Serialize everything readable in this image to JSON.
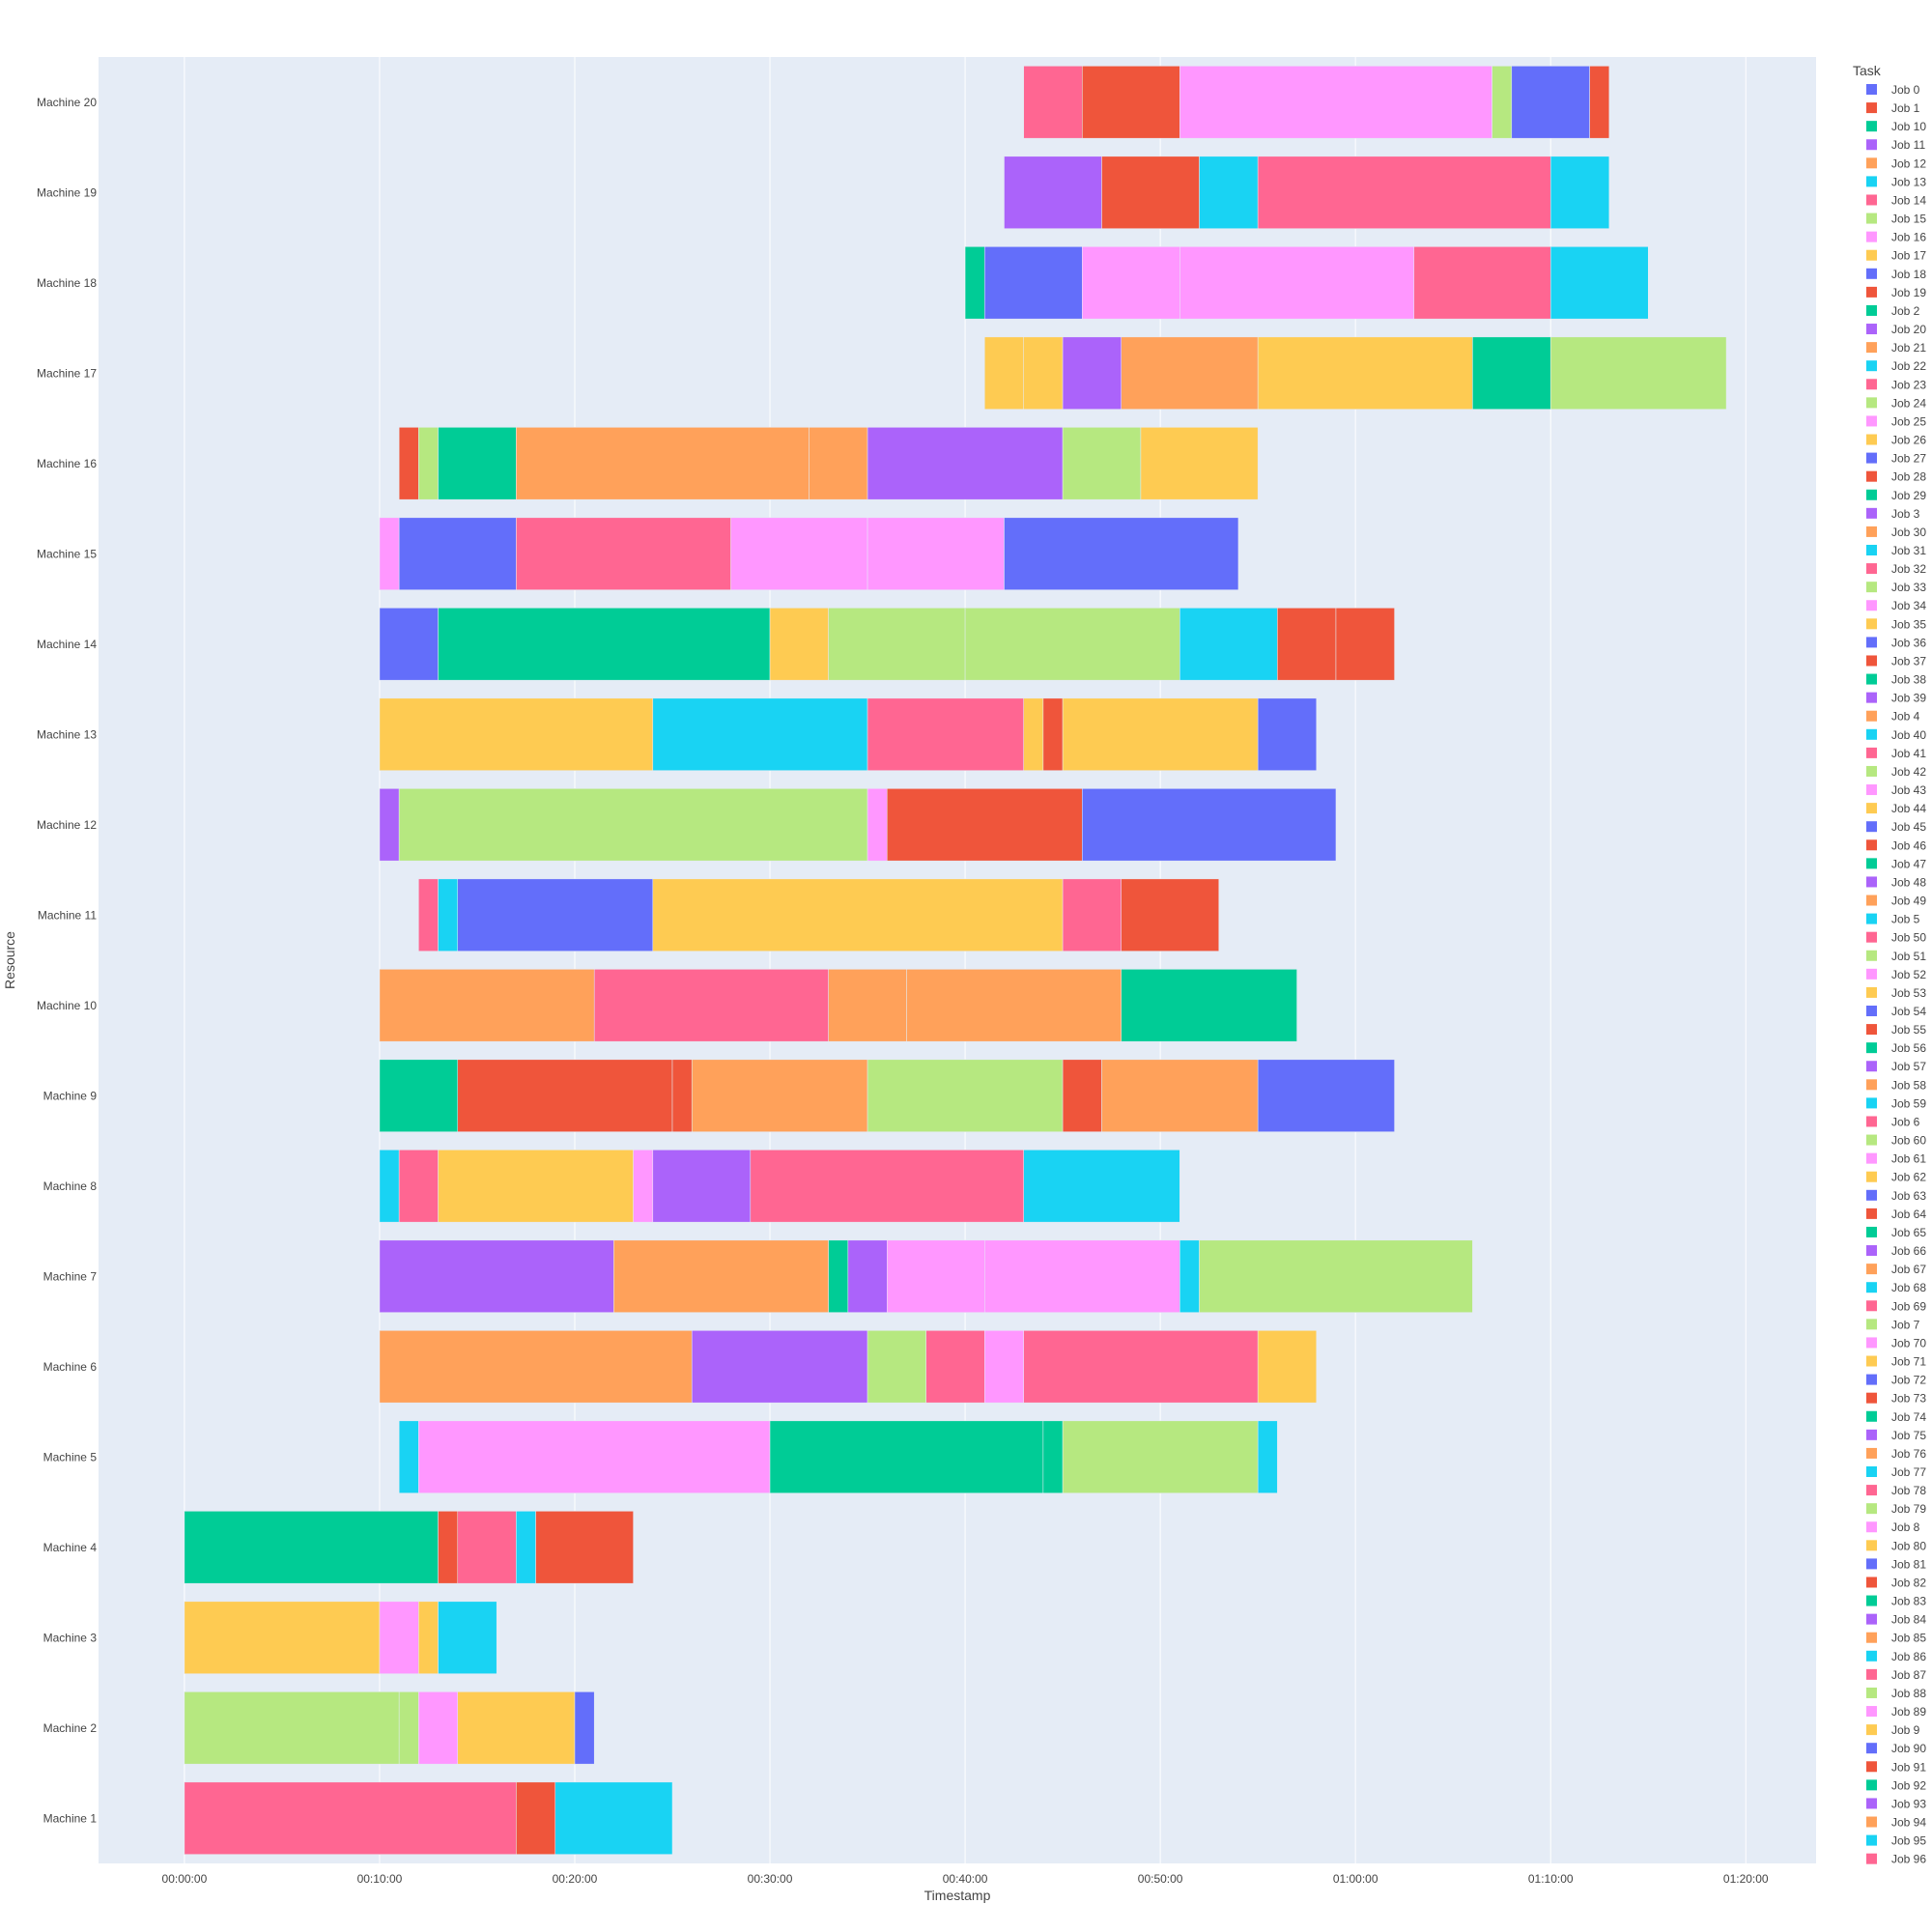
{
  "chart_data": {
    "type": "gantt",
    "x_axis_title": "Timestamp",
    "y_axis_title": "Resource",
    "legend_title": "Task",
    "x_range_minutes": [
      -4.4,
      83.6
    ],
    "x_tick_values_minutes": [
      0,
      10,
      20,
      30,
      40,
      50,
      60,
      70,
      80
    ],
    "x_tick_labels": [
      "00:00:00",
      "00:10:00",
      "00:20:00",
      "00:30:00",
      "00:40:00",
      "00:50:00",
      "01:00:00",
      "01:10:00",
      "01:20:00"
    ],
    "resources": [
      "Machine 1",
      "Machine 2",
      "Machine 3",
      "Machine 4",
      "Machine 5",
      "Machine 6",
      "Machine 7",
      "Machine 8",
      "Machine 9",
      "Machine 10",
      "Machine 11",
      "Machine 12",
      "Machine 13",
      "Machine 14",
      "Machine 15",
      "Machine 16",
      "Machine 17",
      "Machine 18",
      "Machine 19",
      "Machine 20"
    ],
    "legend_entries": [
      "Job 0",
      "Job 1",
      "Job 10",
      "Job 11",
      "Job 12",
      "Job 13",
      "Job 14",
      "Job 15",
      "Job 16",
      "Job 17",
      "Job 18",
      "Job 19",
      "Job 2",
      "Job 20",
      "Job 21",
      "Job 22",
      "Job 23",
      "Job 24",
      "Job 25",
      "Job 26",
      "Job 27",
      "Job 28",
      "Job 29",
      "Job 3",
      "Job 30",
      "Job 31",
      "Job 32",
      "Job 33",
      "Job 34",
      "Job 35",
      "Job 36",
      "Job 37",
      "Job 38",
      "Job 39",
      "Job 4",
      "Job 40",
      "Job 41",
      "Job 42",
      "Job 43",
      "Job 44",
      "Job 45",
      "Job 46",
      "Job 47",
      "Job 48",
      "Job 49",
      "Job 5",
      "Job 50",
      "Job 51",
      "Job 52",
      "Job 53",
      "Job 54",
      "Job 55",
      "Job 56",
      "Job 57",
      "Job 58",
      "Job 59",
      "Job 6",
      "Job 60",
      "Job 61",
      "Job 62",
      "Job 63",
      "Job 64",
      "Job 65",
      "Job 66",
      "Job 67",
      "Job 68",
      "Job 69",
      "Job 7",
      "Job 70",
      "Job 71",
      "Job 72",
      "Job 73",
      "Job 74",
      "Job 75",
      "Job 76",
      "Job 77",
      "Job 78",
      "Job 79",
      "Job 8",
      "Job 80",
      "Job 81",
      "Job 82",
      "Job 83",
      "Job 84",
      "Job 85",
      "Job 86",
      "Job 87",
      "Job 88",
      "Job 89",
      "Job 9",
      "Job 90",
      "Job 91",
      "Job 92",
      "Job 93",
      "Job 94",
      "Job 95",
      "Job 96"
    ],
    "palette": [
      "#636efa",
      "#ef553b",
      "#00cc96",
      "#ab63fa",
      "#ffa15a",
      "#19d3f3",
      "#ff6692",
      "#b6e880",
      "#ff97ff",
      "#fecb52"
    ],
    "tasks": [
      {
        "resource": "Machine 1",
        "start": 0,
        "end": 17,
        "color": "#ff6692"
      },
      {
        "resource": "Machine 1",
        "start": 17,
        "end": 19,
        "color": "#ef553b"
      },
      {
        "resource": "Machine 1",
        "start": 19,
        "end": 25,
        "color": "#19d3f3"
      },
      {
        "resource": "Machine 2",
        "start": 0,
        "end": 11,
        "color": "#b6e880"
      },
      {
        "resource": "Machine 2",
        "start": 11,
        "end": 12,
        "color": "#b6e880"
      },
      {
        "resource": "Machine 2",
        "start": 12,
        "end": 14,
        "color": "#ff97ff"
      },
      {
        "resource": "Machine 2",
        "start": 14,
        "end": 20,
        "color": "#fecb52"
      },
      {
        "resource": "Machine 2",
        "start": 20,
        "end": 21,
        "color": "#636efa"
      },
      {
        "resource": "Machine 3",
        "start": 0,
        "end": 10,
        "color": "#fecb52"
      },
      {
        "resource": "Machine 3",
        "start": 10,
        "end": 12,
        "color": "#ff97ff"
      },
      {
        "resource": "Machine 3",
        "start": 12,
        "end": 13,
        "color": "#fecb52"
      },
      {
        "resource": "Machine 3",
        "start": 13,
        "end": 16,
        "color": "#19d3f3"
      },
      {
        "resource": "Machine 4",
        "start": 0,
        "end": 13,
        "color": "#00cc96"
      },
      {
        "resource": "Machine 4",
        "start": 13,
        "end": 14,
        "color": "#ef553b"
      },
      {
        "resource": "Machine 4",
        "start": 14,
        "end": 17,
        "color": "#ff6692"
      },
      {
        "resource": "Machine 4",
        "start": 17,
        "end": 18,
        "color": "#19d3f3"
      },
      {
        "resource": "Machine 4",
        "start": 18,
        "end": 23,
        "color": "#ef553b"
      },
      {
        "resource": "Machine 5",
        "start": 11,
        "end": 12,
        "color": "#19d3f3"
      },
      {
        "resource": "Machine 5",
        "start": 12,
        "end": 30,
        "color": "#ff97ff"
      },
      {
        "resource": "Machine 5",
        "start": 30,
        "end": 44,
        "color": "#00cc96"
      },
      {
        "resource": "Machine 5",
        "start": 44,
        "end": 45,
        "color": "#00cc96"
      },
      {
        "resource": "Machine 5",
        "start": 45,
        "end": 55,
        "color": "#b6e880"
      },
      {
        "resource": "Machine 5",
        "start": 55,
        "end": 56,
        "color": "#19d3f3"
      },
      {
        "resource": "Machine 6",
        "start": 10,
        "end": 26,
        "color": "#ffa15a"
      },
      {
        "resource": "Machine 6",
        "start": 26,
        "end": 35,
        "color": "#ab63fa"
      },
      {
        "resource": "Machine 6",
        "start": 35,
        "end": 38,
        "color": "#b6e880"
      },
      {
        "resource": "Machine 6",
        "start": 38,
        "end": 41,
        "color": "#ff6692"
      },
      {
        "resource": "Machine 6",
        "start": 41,
        "end": 43,
        "color": "#ff97ff"
      },
      {
        "resource": "Machine 6",
        "start": 43,
        "end": 55,
        "color": "#ff6692"
      },
      {
        "resource": "Machine 6",
        "start": 55,
        "end": 58,
        "color": "#fecb52"
      },
      {
        "resource": "Machine 7",
        "start": 10,
        "end": 22,
        "color": "#ab63fa"
      },
      {
        "resource": "Machine 7",
        "start": 22,
        "end": 33,
        "color": "#ffa15a"
      },
      {
        "resource": "Machine 7",
        "start": 33,
        "end": 34,
        "color": "#00cc96"
      },
      {
        "resource": "Machine 7",
        "start": 34,
        "end": 36,
        "color": "#ab63fa"
      },
      {
        "resource": "Machine 7",
        "start": 36,
        "end": 41,
        "color": "#ff97ff"
      },
      {
        "resource": "Machine 7",
        "start": 41,
        "end": 51,
        "color": "#ff97ff"
      },
      {
        "resource": "Machine 7",
        "start": 51,
        "end": 52,
        "color": "#19d3f3"
      },
      {
        "resource": "Machine 7",
        "start": 52,
        "end": 66,
        "color": "#b6e880"
      },
      {
        "resource": "Machine 8",
        "start": 10,
        "end": 11,
        "color": "#19d3f3"
      },
      {
        "resource": "Machine 8",
        "start": 11,
        "end": 13,
        "color": "#ff6692"
      },
      {
        "resource": "Machine 8",
        "start": 13,
        "end": 23,
        "color": "#fecb52"
      },
      {
        "resource": "Machine 8",
        "start": 23,
        "end": 24,
        "color": "#ff97ff"
      },
      {
        "resource": "Machine 8",
        "start": 24,
        "end": 29,
        "color": "#ab63fa"
      },
      {
        "resource": "Machine 8",
        "start": 29,
        "end": 43,
        "color": "#ff6692"
      },
      {
        "resource": "Machine 8",
        "start": 43,
        "end": 51,
        "color": "#19d3f3"
      },
      {
        "resource": "Machine 9",
        "start": 10,
        "end": 14,
        "color": "#00cc96"
      },
      {
        "resource": "Machine 9",
        "start": 14,
        "end": 25,
        "color": "#ef553b"
      },
      {
        "resource": "Machine 9",
        "start": 25,
        "end": 26,
        "color": "#ef553b"
      },
      {
        "resource": "Machine 9",
        "start": 26,
        "end": 35,
        "color": "#ffa15a"
      },
      {
        "resource": "Machine 9",
        "start": 35,
        "end": 45,
        "color": "#b6e880"
      },
      {
        "resource": "Machine 9",
        "start": 45,
        "end": 47,
        "color": "#ef553b"
      },
      {
        "resource": "Machine 9",
        "start": 47,
        "end": 55,
        "color": "#ffa15a"
      },
      {
        "resource": "Machine 9",
        "start": 55,
        "end": 62,
        "color": "#636efa"
      },
      {
        "resource": "Machine 10",
        "start": 10,
        "end": 21,
        "color": "#ffa15a"
      },
      {
        "resource": "Machine 10",
        "start": 21,
        "end": 33,
        "color": "#ff6692"
      },
      {
        "resource": "Machine 10",
        "start": 33,
        "end": 37,
        "color": "#ffa15a"
      },
      {
        "resource": "Machine 10",
        "start": 37,
        "end": 48,
        "color": "#ffa15a"
      },
      {
        "resource": "Machine 10",
        "start": 48,
        "end": 57,
        "color": "#00cc96"
      },
      {
        "resource": "Machine 11",
        "start": 12,
        "end": 13,
        "color": "#ff6692"
      },
      {
        "resource": "Machine 11",
        "start": 13,
        "end": 14,
        "color": "#19d3f3"
      },
      {
        "resource": "Machine 11",
        "start": 14,
        "end": 24,
        "color": "#636efa"
      },
      {
        "resource": "Machine 11",
        "start": 24,
        "end": 45,
        "color": "#fecb52"
      },
      {
        "resource": "Machine 11",
        "start": 45,
        "end": 48,
        "color": "#ff6692"
      },
      {
        "resource": "Machine 11",
        "start": 48,
        "end": 53,
        "color": "#ef553b"
      },
      {
        "resource": "Machine 12",
        "start": 10,
        "end": 11,
        "color": "#ab63fa"
      },
      {
        "resource": "Machine 12",
        "start": 11,
        "end": 35,
        "color": "#b6e880"
      },
      {
        "resource": "Machine 12",
        "start": 35,
        "end": 36,
        "color": "#ff97ff"
      },
      {
        "resource": "Machine 12",
        "start": 36,
        "end": 46,
        "color": "#ef553b"
      },
      {
        "resource": "Machine 12",
        "start": 46,
        "end": 59,
        "color": "#636efa"
      },
      {
        "resource": "Machine 13",
        "start": 10,
        "end": 24,
        "color": "#fecb52"
      },
      {
        "resource": "Machine 13",
        "start": 24,
        "end": 35,
        "color": "#19d3f3"
      },
      {
        "resource": "Machine 13",
        "start": 35,
        "end": 43,
        "color": "#ff6692"
      },
      {
        "resource": "Machine 13",
        "start": 43,
        "end": 44,
        "color": "#fecb52"
      },
      {
        "resource": "Machine 13",
        "start": 44,
        "end": 45,
        "color": "#ef553b"
      },
      {
        "resource": "Machine 13",
        "start": 45,
        "end": 55,
        "color": "#fecb52"
      },
      {
        "resource": "Machine 13",
        "start": 55,
        "end": 58,
        "color": "#636efa"
      },
      {
        "resource": "Machine 14",
        "start": 10,
        "end": 13,
        "color": "#636efa"
      },
      {
        "resource": "Machine 14",
        "start": 13,
        "end": 30,
        "color": "#00cc96"
      },
      {
        "resource": "Machine 14",
        "start": 30,
        "end": 33,
        "color": "#fecb52"
      },
      {
        "resource": "Machine 14",
        "start": 33,
        "end": 40,
        "color": "#b6e880"
      },
      {
        "resource": "Machine 14",
        "start": 40,
        "end": 51,
        "color": "#b6e880"
      },
      {
        "resource": "Machine 14",
        "start": 51,
        "end": 56,
        "color": "#19d3f3"
      },
      {
        "resource": "Machine 14",
        "start": 56,
        "end": 59,
        "color": "#ef553b"
      },
      {
        "resource": "Machine 14",
        "start": 59,
        "end": 62,
        "color": "#ef553b"
      },
      {
        "resource": "Machine 15",
        "start": 10,
        "end": 11,
        "color": "#ff97ff"
      },
      {
        "resource": "Machine 15",
        "start": 11,
        "end": 17,
        "color": "#636efa"
      },
      {
        "resource": "Machine 15",
        "start": 17,
        "end": 28,
        "color": "#ff6692"
      },
      {
        "resource": "Machine 15",
        "start": 28,
        "end": 35,
        "color": "#ff97ff"
      },
      {
        "resource": "Machine 15",
        "start": 35,
        "end": 42,
        "color": "#ff97ff"
      },
      {
        "resource": "Machine 15",
        "start": 42,
        "end": 54,
        "color": "#636efa"
      },
      {
        "resource": "Machine 16",
        "start": 11,
        "end": 12,
        "color": "#ef553b"
      },
      {
        "resource": "Machine 16",
        "start": 12,
        "end": 13,
        "color": "#b6e880"
      },
      {
        "resource": "Machine 16",
        "start": 13,
        "end": 17,
        "color": "#00cc96"
      },
      {
        "resource": "Machine 16",
        "start": 17,
        "end": 32,
        "color": "#ffa15a"
      },
      {
        "resource": "Machine 16",
        "start": 32,
        "end": 35,
        "color": "#ffa15a"
      },
      {
        "resource": "Machine 16",
        "start": 35,
        "end": 45,
        "color": "#ab63fa"
      },
      {
        "resource": "Machine 16",
        "start": 45,
        "end": 49,
        "color": "#b6e880"
      },
      {
        "resource": "Machine 16",
        "start": 49,
        "end": 55,
        "color": "#fecb52"
      },
      {
        "resource": "Machine 17",
        "start": 41,
        "end": 43,
        "color": "#fecb52"
      },
      {
        "resource": "Machine 17",
        "start": 43,
        "end": 45,
        "color": "#fecb52"
      },
      {
        "resource": "Machine 17",
        "start": 45,
        "end": 48,
        "color": "#ab63fa"
      },
      {
        "resource": "Machine 17",
        "start": 48,
        "end": 55,
        "color": "#ffa15a"
      },
      {
        "resource": "Machine 17",
        "start": 55,
        "end": 66,
        "color": "#fecb52"
      },
      {
        "resource": "Machine 17",
        "start": 66,
        "end": 70,
        "color": "#00cc96"
      },
      {
        "resource": "Machine 17",
        "start": 70,
        "end": 79,
        "color": "#b6e880"
      },
      {
        "resource": "Machine 18",
        "start": 40,
        "end": 41,
        "color": "#00cc96"
      },
      {
        "resource": "Machine 18",
        "start": 41,
        "end": 46,
        "color": "#636efa"
      },
      {
        "resource": "Machine 18",
        "start": 46,
        "end": 51,
        "color": "#ff97ff"
      },
      {
        "resource": "Machine 18",
        "start": 51,
        "end": 63,
        "color": "#ff97ff"
      },
      {
        "resource": "Machine 18",
        "start": 63,
        "end": 70,
        "color": "#ff6692"
      },
      {
        "resource": "Machine 18",
        "start": 70,
        "end": 75,
        "color": "#19d3f3"
      },
      {
        "resource": "Machine 19",
        "start": 42,
        "end": 47,
        "color": "#ab63fa"
      },
      {
        "resource": "Machine 19",
        "start": 47,
        "end": 52,
        "color": "#ef553b"
      },
      {
        "resource": "Machine 19",
        "start": 52,
        "end": 55,
        "color": "#19d3f3"
      },
      {
        "resource": "Machine 19",
        "start": 55,
        "end": 70,
        "color": "#ff6692"
      },
      {
        "resource": "Machine 19",
        "start": 70,
        "end": 73,
        "color": "#19d3f3"
      },
      {
        "resource": "Machine 20",
        "start": 43,
        "end": 46,
        "color": "#ff6692"
      },
      {
        "resource": "Machine 20",
        "start": 46,
        "end": 51,
        "color": "#ef553b"
      },
      {
        "resource": "Machine 20",
        "start": 51,
        "end": 67,
        "color": "#ff97ff"
      },
      {
        "resource": "Machine 20",
        "start": 67,
        "end": 68,
        "color": "#b6e880"
      },
      {
        "resource": "Machine 20",
        "start": 68,
        "end": 72,
        "color": "#636efa"
      },
      {
        "resource": "Machine 20",
        "start": 72,
        "end": 73,
        "color": "#ef553b"
      }
    ]
  }
}
